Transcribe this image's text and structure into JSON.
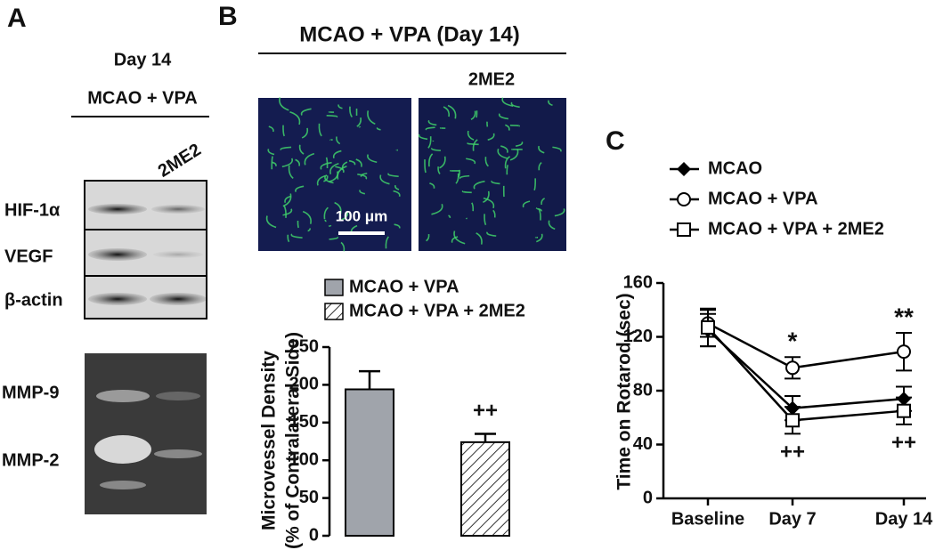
{
  "panels": {
    "a": {
      "label": "A",
      "title": "Day 14",
      "group": "MCAO + VPA",
      "treatment": "2ME2",
      "blot_labels": [
        "HIF-1α",
        "VEGF",
        "β-actin"
      ],
      "zymo_labels": [
        "MMP-9",
        "MMP-2"
      ]
    },
    "b": {
      "label": "B",
      "title": "MCAO + VPA (Day 14)",
      "treatment": "2ME2",
      "scale_bar": "100 μm"
    },
    "c": {
      "label": "C"
    }
  },
  "chart_data": [
    {
      "type": "bar",
      "ylabel": [
        "Microvessel Density",
        "(% of Contralateral Side)"
      ],
      "categories": [
        null,
        null
      ],
      "series": [
        {
          "name": "MCAO + VPA",
          "color": "#a0a4ab",
          "values": [
            194,
            null
          ],
          "errors": [
            24,
            null
          ]
        },
        {
          "name": "MCAO + VPA + 2ME2",
          "color": "#ffffff",
          "hatch": true,
          "values": [
            null,
            124
          ],
          "errors": [
            null,
            11
          ]
        }
      ],
      "annotations": [
        null,
        "++"
      ],
      "ylim": [
        0,
        250
      ],
      "yticks": [
        0,
        50,
        100,
        150,
        200,
        250
      ]
    },
    {
      "type": "line",
      "ylabel": "Time on Rotarod (sec)",
      "categories": [
        "Baseline",
        "Day 7",
        "Day 14"
      ],
      "series": [
        {
          "name": "MCAO",
          "color": "#000000",
          "marker": "diamond",
          "values": [
            125,
            67,
            74
          ],
          "errors": [
            12,
            9,
            9
          ]
        },
        {
          "name": "MCAO + VPA",
          "color": "#000000",
          "marker": "circle",
          "values": [
            130,
            97,
            109
          ],
          "errors": [
            10,
            8,
            14
          ]
        },
        {
          "name": "MCAO + VPA + 2ME2",
          "color": "#000000",
          "marker": "square",
          "values": [
            127,
            58,
            65
          ],
          "errors": [
            14,
            10,
            10
          ]
        }
      ],
      "annotations_above": [
        null,
        "*",
        "**"
      ],
      "annotations_below": [
        null,
        "++",
        "++"
      ],
      "ylim": [
        0,
        160
      ],
      "yticks": [
        0,
        40,
        80,
        120,
        160
      ]
    }
  ]
}
